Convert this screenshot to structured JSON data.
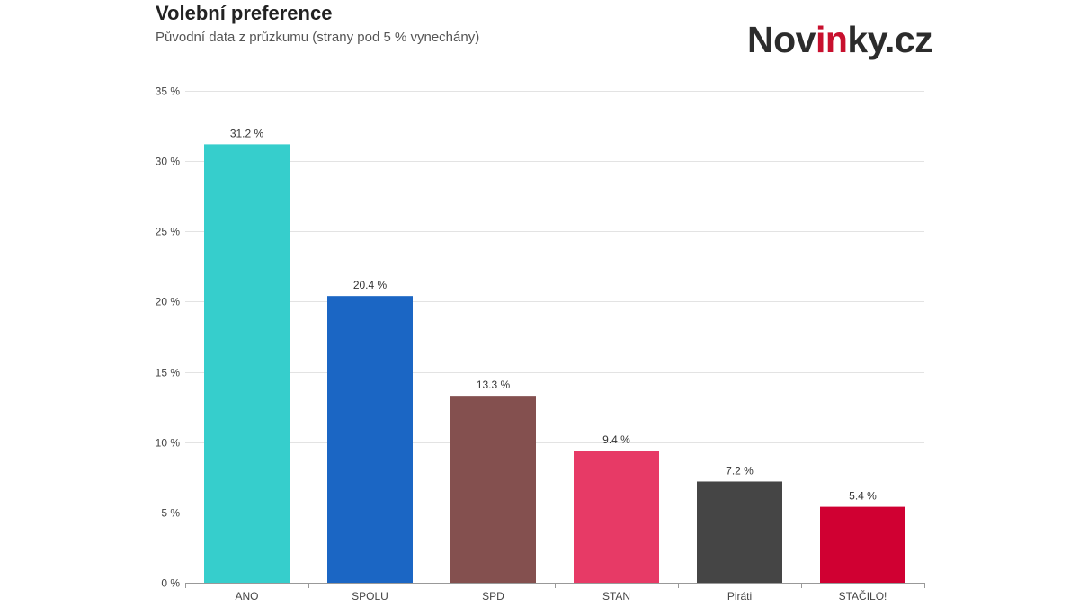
{
  "header": {
    "title": "Volební preference",
    "subtitle": "Původní data z průzkumu (strany pod 5 % vynechány)"
  },
  "logo": {
    "part1": "Nov",
    "part2": "in",
    "part3": "ky.cz",
    "accent_color": "#c8102e"
  },
  "chart_data": {
    "type": "bar",
    "title": "Volební preference",
    "subtitle": "Původní data z průzkumu (strany pod 5 % vynechány)",
    "categories": [
      "ANO",
      "SPOLU",
      "SPD",
      "STAN",
      "Piráti",
      "STAČILO!"
    ],
    "values": [
      31.2,
      20.4,
      13.3,
      9.4,
      7.2,
      5.4
    ],
    "data_labels": [
      "31.2 %",
      "20.4 %",
      "13.3 %",
      "9.4 %",
      "7.2 %",
      "5.4 %"
    ],
    "colors": [
      "#36cecc",
      "#1b66c4",
      "#84504f",
      "#e73a66",
      "#454545",
      "#d00032"
    ],
    "ylim": [
      0,
      35
    ],
    "yticks": [
      0,
      5,
      10,
      15,
      20,
      25,
      30,
      35
    ],
    "ytick_labels": [
      "0 %",
      "5 %",
      "10 %",
      "15 %",
      "20 %",
      "25 %",
      "30 %",
      "35 %"
    ],
    "xlabel": "",
    "ylabel": "",
    "grid": true,
    "legend": "none"
  }
}
